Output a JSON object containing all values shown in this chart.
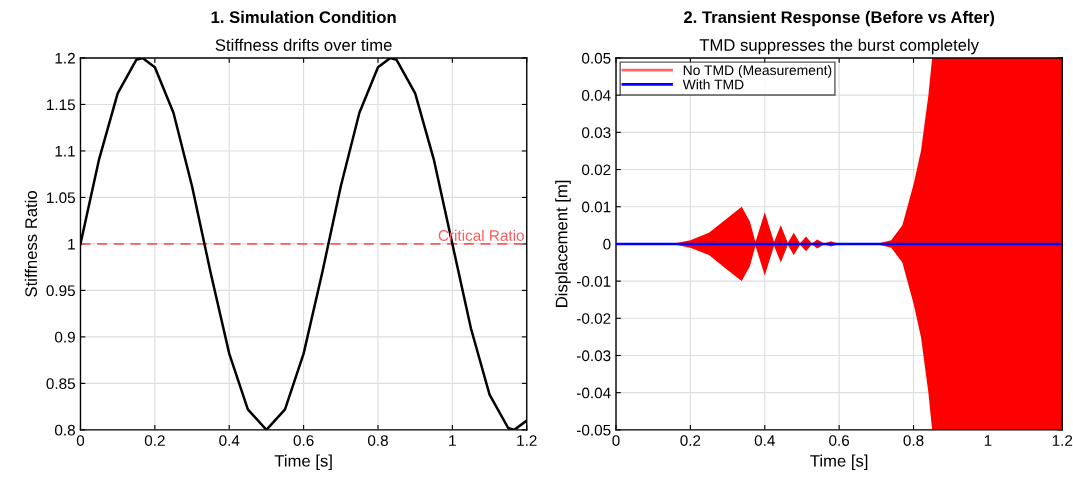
{
  "chart_data": [
    {
      "type": "line",
      "title": "1. Simulation Condition",
      "subtitle": "Stiffness drifts over time",
      "xlabel": "Time [s]",
      "ylabel": "Stiffness Ratio",
      "x": [
        0,
        0.05,
        0.1,
        0.15,
        0.1667,
        0.2,
        0.25,
        0.3,
        0.35,
        0.4,
        0.45,
        0.5,
        0.55,
        0.6,
        0.65,
        0.7,
        0.75,
        0.8,
        0.8333,
        0.85,
        0.9,
        0.95,
        1.0,
        1.05,
        1.1,
        1.15,
        1.1667,
        1.2
      ],
      "series": [
        {
          "color": "#000000",
          "values": [
            1.0,
            1.091,
            1.162,
            1.198,
            1.2,
            1.19,
            1.141,
            1.062,
            0.969,
            0.882,
            0.822,
            0.8,
            0.822,
            0.882,
            0.969,
            1.062,
            1.141,
            1.19,
            1.2,
            1.198,
            1.162,
            1.091,
            1.0,
            0.909,
            0.838,
            0.802,
            0.8,
            0.81
          ]
        }
      ],
      "ref_lines": [
        {
          "axis": "y",
          "value": 1,
          "label": "Critical Ratio",
          "color": "#ff5a5a",
          "line_style": "dashed"
        }
      ],
      "xlim": [
        0,
        1.2
      ],
      "ylim": [
        0.8,
        1.2
      ],
      "xticks": [
        0,
        0.2,
        0.4,
        0.6,
        0.8,
        1,
        1.2
      ],
      "yticks": [
        0.8,
        0.85,
        0.9,
        0.95,
        1,
        1.05,
        1.1,
        1.15,
        1.2
      ],
      "grid": true,
      "legend": false,
      "line_style": "solid",
      "marker": "none"
    },
    {
      "type": "line",
      "title": "2. Transient Response (Before vs After)",
      "subtitle": "TMD suppresses the burst completely",
      "xlabel": "Time [s]",
      "ylabel": "Displacement [m]",
      "series": [
        {
          "name": "No TMD (Measurement)",
          "color": "#ff0000",
          "x": [
            0,
            0.15,
            0.2,
            0.25,
            0.3,
            0.338,
            0.36,
            0.375,
            0.4,
            0.425,
            0.443,
            0.462,
            0.478,
            0.495,
            0.511,
            0.527,
            0.541,
            0.56,
            0.578,
            0.6,
            0.7,
            0.74,
            0.77,
            0.8,
            0.82,
            0.84,
            0.85,
            1.2
          ],
          "values": [
            null,
            null,
            null,
            null,
            null,
            null,
            null,
            null,
            null,
            null,
            null,
            null,
            null,
            null,
            null,
            null,
            null,
            null,
            null,
            null,
            null,
            null,
            null,
            null,
            null,
            null,
            null,
            null
          ],
          "upper": [
            0,
            0,
            0.001,
            0.003,
            0.007,
            0.01,
            0.006,
            0.0005,
            0.0085,
            0.0005,
            0.005,
            0.0003,
            0.003,
            0.0002,
            0.002,
            0.0001,
            0.0012,
            0.0001,
            0.0007,
            0,
            0,
            0.001,
            0.005,
            0.016,
            0.025,
            0.04,
            0.05,
            0.05
          ],
          "lower": [
            0,
            0,
            -0.001,
            -0.003,
            -0.007,
            -0.01,
            -0.006,
            -0.0005,
            -0.0085,
            -0.0005,
            -0.005,
            -0.0003,
            -0.003,
            -0.0002,
            -0.002,
            -0.0001,
            -0.0012,
            -0.0001,
            -0.0007,
            0,
            0,
            -0.001,
            -0.005,
            -0.016,
            -0.025,
            -0.04,
            -0.05,
            -0.05
          ]
        },
        {
          "name": "With TMD",
          "color": "#0000ff",
          "x": [
            0,
            1.2
          ],
          "values": [
            0,
            0
          ]
        }
      ],
      "xlim": [
        0,
        1.2
      ],
      "ylim": [
        -0.05,
        0.05
      ],
      "xticks": [
        0,
        0.2,
        0.4,
        0.6,
        0.8,
        1,
        1.2
      ],
      "yticks": [
        -0.05,
        -0.04,
        -0.03,
        -0.02,
        -0.01,
        0,
        0.01,
        0.02,
        0.03,
        0.04,
        0.05
      ],
      "grid": true,
      "legend": "top left",
      "line_style": "solid",
      "marker": "none"
    }
  ]
}
